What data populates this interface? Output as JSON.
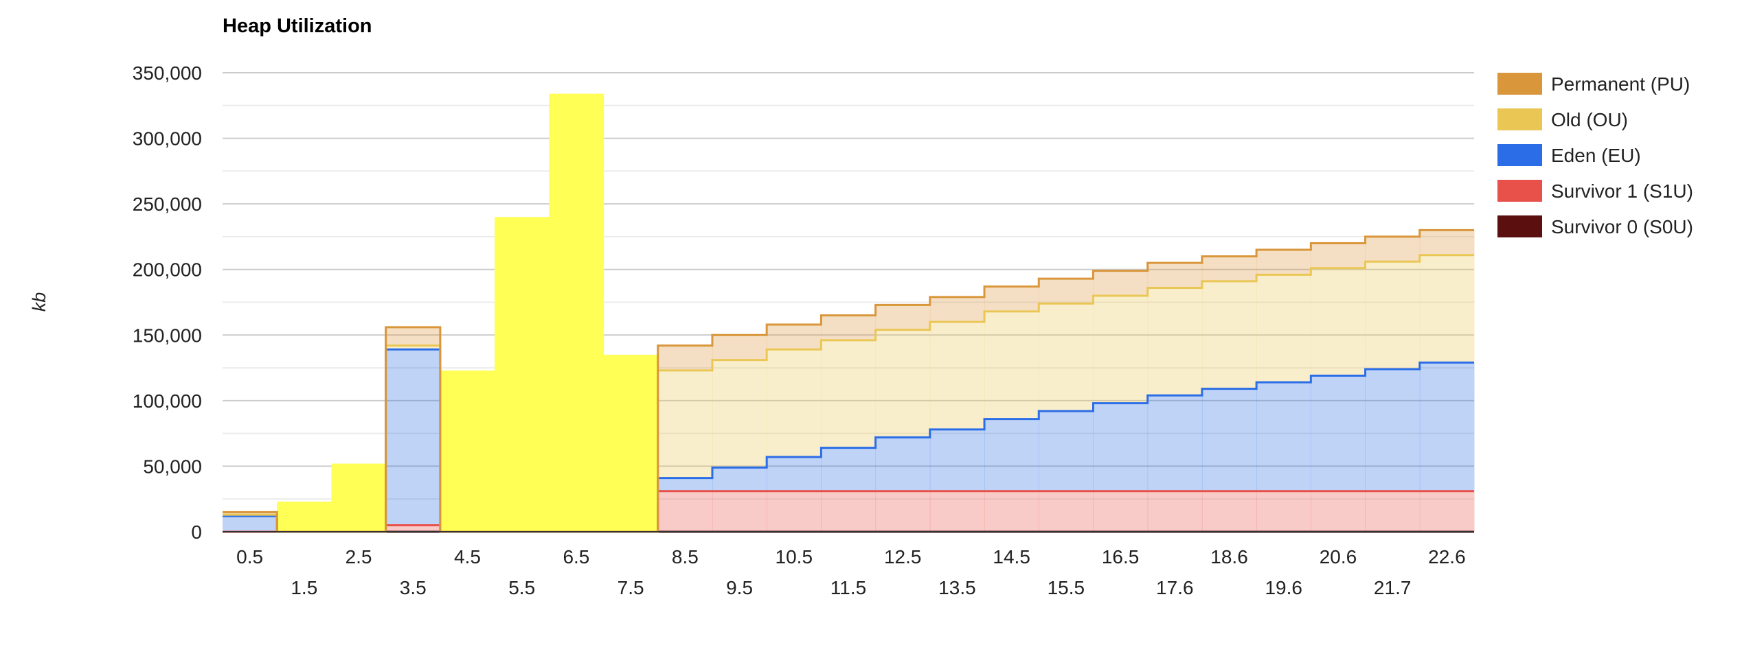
{
  "chart_data": {
    "type": "area",
    "title": "Heap Utilization",
    "xlabel": "",
    "ylabel": "kb",
    "ylim": [
      0,
      350000
    ],
    "y_ticks": [
      "0",
      "50,000",
      "100,000",
      "150,000",
      "200,000",
      "250,000",
      "300,000",
      "350,000"
    ],
    "x_tick_labels_top": [
      "0.5",
      "2.5",
      "4.5",
      "6.5",
      "8.5",
      "10.5",
      "12.5",
      "14.5",
      "16.5",
      "18.6",
      "20.6",
      "22.6"
    ],
    "x_tick_labels_bottom": [
      "1.5",
      "3.5",
      "5.5",
      "7.5",
      "9.5",
      "11.5",
      "13.5",
      "15.5",
      "17.6",
      "19.6",
      "21.7"
    ],
    "legend_position": "right",
    "x": [
      0.5,
      1.5,
      2.5,
      3.5,
      4.5,
      5.5,
      6.5,
      7.5,
      8.5,
      9.5,
      10.5,
      11.5,
      12.5,
      13.5,
      14.5,
      15.5,
      16.5,
      17.6,
      18.6,
      19.6,
      20.6,
      21.7,
      22.6
    ],
    "series": [
      {
        "name": "Survivor 0 (S0U)",
        "color": "#5b0f0f",
        "values": [
          0,
          0,
          0,
          0,
          0,
          0,
          0,
          0,
          0,
          0,
          0,
          0,
          0,
          0,
          0,
          0,
          0,
          0,
          0,
          0,
          0,
          0,
          0
        ]
      },
      {
        "name": "Survivor 1 (S1U)",
        "color": "#e8504a",
        "values": [
          0,
          0,
          0,
          5000,
          0,
          0,
          0,
          0,
          31000,
          31000,
          31000,
          31000,
          31000,
          31000,
          31000,
          31000,
          31000,
          31000,
          31000,
          31000,
          31000,
          31000,
          31000
        ]
      },
      {
        "name": "Eden (EU)",
        "color": "#2b6de6",
        "values": [
          12000,
          0,
          0,
          134000,
          0,
          0,
          0,
          0,
          10000,
          18000,
          26000,
          33000,
          41000,
          47000,
          55000,
          61000,
          67000,
          73000,
          78000,
          83000,
          88000,
          93000,
          98000
        ]
      },
      {
        "name": "Old (OU)",
        "color": "#eac755",
        "values": [
          1000,
          0,
          0,
          3000,
          0,
          0,
          0,
          0,
          82000,
          82000,
          82000,
          82000,
          82000,
          82000,
          82000,
          82000,
          82000,
          82000,
          82000,
          82000,
          82000,
          82000,
          82000
        ]
      },
      {
        "name": "Permanent (PU)",
        "color": "#d9963a",
        "values": [
          2000,
          0,
          0,
          14000,
          0,
          0,
          0,
          0,
          19000,
          19000,
          19000,
          19000,
          19000,
          19000,
          19000,
          19000,
          19000,
          19000,
          19000,
          19000,
          19000,
          19000,
          19000
        ]
      }
    ],
    "highlight": {
      "color": "#ffff55",
      "categories": [
        1.5,
        2.5,
        4.5,
        5.5,
        6.5,
        7.5
      ],
      "values": [
        23000,
        52000,
        123000,
        240000,
        334000,
        135000
      ]
    }
  }
}
